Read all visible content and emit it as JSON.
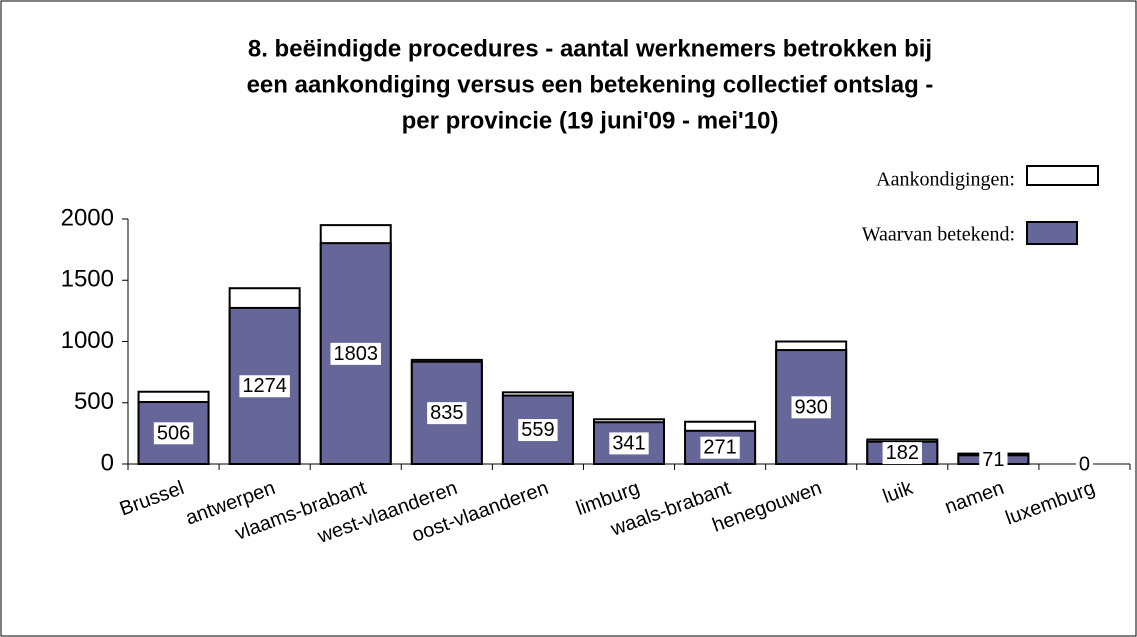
{
  "chart_data": {
    "type": "bar",
    "title_lines": [
      "8. beëindigde procedures - aantal werknemers betrokken bij",
      "een aankondiging versus een betekening collectief ontslag -",
      "per provincie (19 juni'09 - mei'10)"
    ],
    "categories": [
      "Brussel",
      "antwerpen",
      "vlaams-brabant",
      "west-vlaanderen",
      "oost-vlaanderen",
      "limburg",
      "waals-brabant",
      "henegouwen",
      "luik",
      "namen",
      "luxemburg"
    ],
    "series": [
      {
        "name": "Aankondigingen:",
        "color": "#ffffff",
        "values": [
          590,
          1435,
          1950,
          850,
          585,
          365,
          345,
          1000,
          200,
          85,
          0
        ]
      },
      {
        "name": "Waarvan betekend:",
        "color": "#666699",
        "values": [
          506,
          1274,
          1803,
          835,
          559,
          341,
          271,
          930,
          182,
          71,
          0
        ]
      }
    ],
    "ylim": [
      0,
      2000
    ],
    "yticks": [
      0,
      500,
      1000,
      1500,
      2000
    ],
    "grid": false
  }
}
